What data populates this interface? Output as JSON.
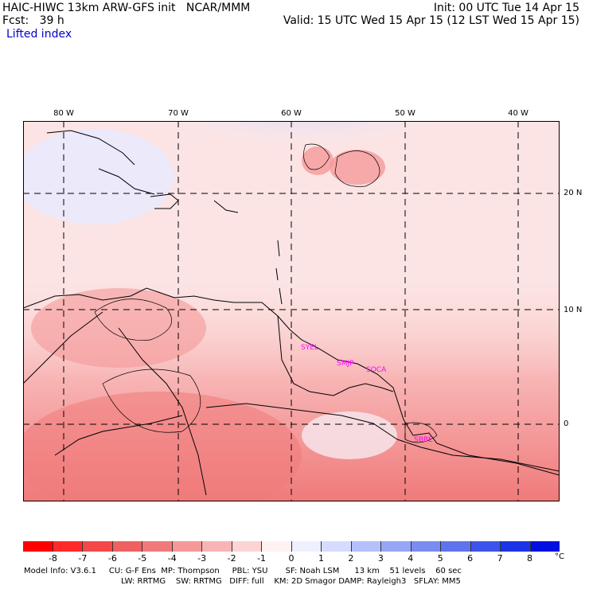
{
  "header": {
    "line1_left": "HAIC-HIWC 13km ARW-GFS init   NCAR/MMM",
    "line1_right": "Init: 00 UTC Tue 14 Apr 15",
    "line2_left": "Fcst:   39 h",
    "line2_right": "Valid: 15 UTC Wed 15 Apr 15 (12 LST Wed 15 Apr 15)",
    "field_name": "Lifted index"
  },
  "map": {
    "longitude_labels": [
      "80 W",
      "70 W",
      "60 W",
      "50 W",
      "40 W"
    ],
    "latitude_labels": [
      "20 N",
      "10 N",
      "0"
    ],
    "station_labels": [
      "SYEL",
      "SMJP",
      "SOCA",
      "SBBE"
    ]
  },
  "colorbar": {
    "labels": [
      "-8",
      "-7",
      "-6",
      "-5",
      "-4",
      "-3",
      "-2",
      "-1",
      "0",
      "1",
      "2",
      "3",
      "4",
      "5",
      "6",
      "7",
      "8"
    ],
    "unit": "°C",
    "colors": [
      "#ff0000",
      "#ff2a2a",
      "#f44848",
      "#f06060",
      "#f07a7a",
      "#f59898",
      "#f8b4b4",
      "#fcd4d4",
      "#fff2f2",
      "#eef0ff",
      "#d6dcff",
      "#b4c0fa",
      "#96a6f5",
      "#7a8cf0",
      "#5e74ee",
      "#3c54ea",
      "#1a34e6",
      "#0010e0"
    ]
  },
  "footer": {
    "line1": "Model Info: V3.6.1     CU: G-F Ens  MP: Thompson     PBL: YSU       SF: Noah LSM      13 km    51 levels    60 sec",
    "line2": "LW: RRTMG    SW: RRTMG   DIFF: full    KM: 2D Smagor DAMP: Rayleigh3   SFLAY: MM5"
  }
}
